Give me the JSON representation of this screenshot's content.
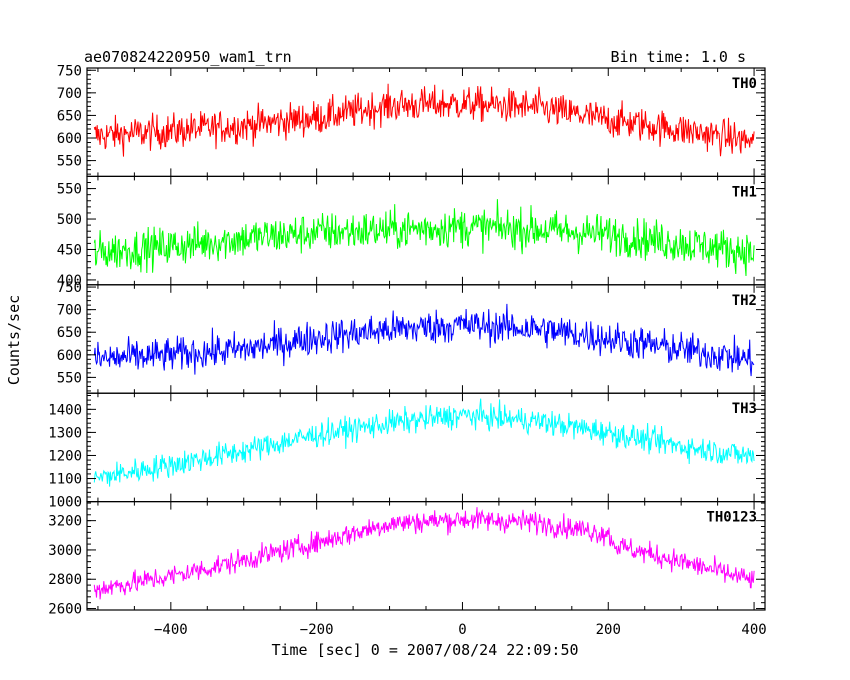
{
  "header": {
    "title": "ae070824220950_wam1_trn",
    "bin_time": "Bin time: 1.0 s"
  },
  "chart_data": {
    "type": "line",
    "title": "ae070824220950_wam1_trn",
    "xlabel": "Time [sec] 0 = 2007/08/24 22:09:50",
    "ylabel": "Counts/sec",
    "xlim": [
      -515,
      415
    ],
    "x_ticks": [
      -400,
      -200,
      0,
      200,
      400
    ],
    "x_tick_labels": [
      "−400",
      "−200",
      "0",
      "200",
      "400"
    ],
    "x_range": [
      -505,
      400
    ],
    "bin_time_s": 1.0,
    "grid": false,
    "series": [
      {
        "name": "TH0",
        "color": "#ff0000",
        "ylim": [
          515,
          755
        ],
        "y_ticks": [
          550,
          600,
          650,
          700,
          750
        ],
        "trend": [
          [
            -505,
            605
          ],
          [
            -400,
            615
          ],
          [
            -300,
            628
          ],
          [
            -200,
            645
          ],
          [
            -100,
            672
          ],
          [
            0,
            676
          ],
          [
            100,
            668
          ],
          [
            200,
            640
          ],
          [
            300,
            618
          ],
          [
            400,
            592
          ]
        ],
        "noise": 35
      },
      {
        "name": "TH1",
        "color": "#00ff00",
        "ylim": [
          392,
          570
        ],
        "y_ticks": [
          400,
          450,
          500,
          550
        ],
        "trend": [
          [
            -505,
            445
          ],
          [
            -400,
            455
          ],
          [
            -300,
            468
          ],
          [
            -200,
            478
          ],
          [
            -100,
            482
          ],
          [
            0,
            487
          ],
          [
            100,
            483
          ],
          [
            200,
            475
          ],
          [
            300,
            460
          ],
          [
            400,
            445
          ]
        ],
        "noise": 30
      },
      {
        "name": "TH2",
        "color": "#0000ff",
        "ylim": [
          515,
          755
        ],
        "y_ticks": [
          550,
          600,
          650,
          700,
          750
        ],
        "trend": [
          [
            -505,
            590
          ],
          [
            -400,
            600
          ],
          [
            -300,
            612
          ],
          [
            -200,
            638
          ],
          [
            -100,
            656
          ],
          [
            0,
            666
          ],
          [
            100,
            658
          ],
          [
            200,
            636
          ],
          [
            300,
            612
          ],
          [
            400,
            588
          ]
        ],
        "noise": 35
      },
      {
        "name": "TH3",
        "color": "#00ffff",
        "ylim": [
          1000,
          1470
        ],
        "y_ticks": [
          1000,
          1100,
          1200,
          1300,
          1400
        ],
        "trend": [
          [
            -505,
            1100
          ],
          [
            -400,
            1160
          ],
          [
            -300,
            1220
          ],
          [
            -200,
            1290
          ],
          [
            -100,
            1340
          ],
          [
            0,
            1375
          ],
          [
            100,
            1350
          ],
          [
            200,
            1300
          ],
          [
            300,
            1240
          ],
          [
            400,
            1195
          ]
        ],
        "noise": 50
      },
      {
        "name": "TH0123",
        "color": "#ff00ff",
        "ylim": [
          2590,
          3330
        ],
        "y_ticks": [
          2600,
          2800,
          3000,
          3200
        ],
        "trend": [
          [
            -505,
            2730
          ],
          [
            -400,
            2820
          ],
          [
            -300,
            2930
          ],
          [
            -200,
            3050
          ],
          [
            -100,
            3180
          ],
          [
            0,
            3210
          ],
          [
            100,
            3190
          ],
          [
            200,
            3110
          ],
          [
            210,
            3030
          ],
          [
            300,
            2920
          ],
          [
            400,
            2790
          ]
        ],
        "noise": 70
      }
    ]
  }
}
